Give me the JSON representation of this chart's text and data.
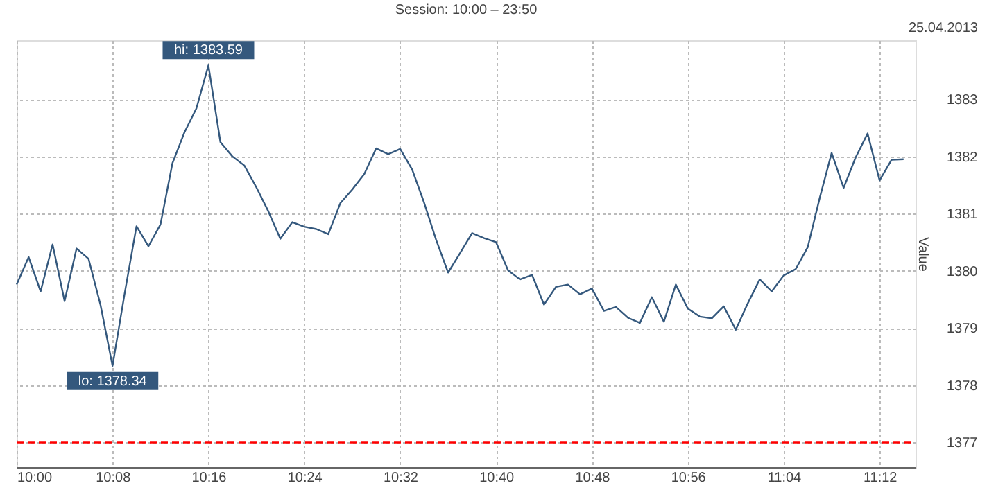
{
  "chart_data": {
    "type": "line",
    "title": "Session: 10:00 – 23:50",
    "ylabel": "Value",
    "x": [
      "2013-04-25T10:00",
      "2013-04-25T10:01",
      "2013-04-25T10:02",
      "2013-04-25T10:03",
      "2013-04-25T10:04",
      "2013-04-25T10:05",
      "2013-04-25T10:06",
      "2013-04-25T10:07",
      "2013-04-25T10:08",
      "2013-04-25T10:09",
      "2013-04-25T10:10",
      "2013-04-25T10:11",
      "2013-04-25T10:12",
      "2013-04-25T10:13",
      "2013-04-25T10:14",
      "2013-04-25T10:15",
      "2013-04-25T10:16",
      "2013-04-25T10:17",
      "2013-04-25T10:18",
      "2013-04-25T10:19",
      "2013-04-25T10:20",
      "2013-04-25T10:21",
      "2013-04-25T10:22",
      "2013-04-25T10:23",
      "2013-04-25T10:24",
      "2013-04-25T10:25",
      "2013-04-25T10:26",
      "2013-04-25T10:27",
      "2013-04-25T10:28",
      "2013-04-25T10:29",
      "2013-04-25T10:30",
      "2013-04-25T10:31",
      "2013-04-25T10:32",
      "2013-04-25T10:33",
      "2013-04-25T10:34",
      "2013-04-25T10:35",
      "2013-04-25T10:36",
      "2013-04-25T10:37",
      "2013-04-25T10:38",
      "2013-04-25T10:39",
      "2013-04-25T10:40",
      "2013-04-25T10:41",
      "2013-04-25T10:42",
      "2013-04-25T10:43",
      "2013-04-25T10:44",
      "2013-04-25T10:45",
      "2013-04-25T10:46",
      "2013-04-25T10:47",
      "2013-04-25T10:48",
      "2013-04-25T10:49",
      "2013-04-25T10:50",
      "2013-04-25T10:51",
      "2013-04-25T10:52",
      "2013-04-25T10:53",
      "2013-04-25T10:54",
      "2013-04-25T10:55",
      "2013-04-25T10:56",
      "2013-04-25T10:57",
      "2013-04-25T10:58",
      "2013-04-25T10:59",
      "2013-04-25T11:00",
      "2013-04-25T11:01",
      "2013-04-25T11:02",
      "2013-04-25T11:03",
      "2013-04-25T11:04",
      "2013-04-25T11:05",
      "2013-04-25T11:06",
      "2013-04-25T11:07",
      "2013-04-25T11:08",
      "2013-04-25T11:09",
      "2013-04-25T11:10",
      "2013-04-25T11:11",
      "2013-04-25T11:12",
      "2013-04-25T11:13",
      "2013-04-25T11:14"
    ],
    "series": [
      {
        "color": "#34587d",
        "values": [
          1379.76,
          1380.24,
          1379.64,
          1380.46,
          1379.47,
          1380.39,
          1380.21,
          1379.4,
          1378.34,
          1379.59,
          1380.78,
          1380.43,
          1380.81,
          1381.88,
          1382.42,
          1382.84,
          1383.59,
          1382.25,
          1382.0,
          1381.84,
          1381.46,
          1381.04,
          1380.56,
          1380.85,
          1380.77,
          1380.73,
          1380.64,
          1381.18,
          1381.42,
          1381.69,
          1382.14,
          1382.04,
          1382.13,
          1381.77,
          1381.19,
          1380.54,
          1379.97,
          1380.31,
          1380.66,
          1380.57,
          1380.5,
          1380.01,
          1379.85,
          1379.93,
          1379.41,
          1379.72,
          1379.76,
          1379.59,
          1379.69,
          1379.3,
          1379.37,
          1379.18,
          1379.09,
          1379.54,
          1379.11,
          1379.76,
          1379.34,
          1379.2,
          1379.17,
          1379.38,
          1378.97,
          1379.43,
          1379.85,
          1379.64,
          1379.92,
          1380.03,
          1380.41,
          1381.27,
          1382.06,
          1381.45,
          1381.98,
          1382.4,
          1381.58,
          1381.94,
          1381.95
        ]
      }
    ],
    "xlim": [
      "2013-04-25T10:00",
      "2013-04-25T11:15"
    ],
    "xticks": [
      {
        "value": "2013-04-25T10:00",
        "label": "10:00"
      },
      {
        "value": "2013-04-25T10:08",
        "label": "10:08"
      },
      {
        "value": "2013-04-25T10:16",
        "label": "10:16"
      },
      {
        "value": "2013-04-25T10:24",
        "label": "10:24"
      },
      {
        "value": "2013-04-25T10:32",
        "label": "10:32"
      },
      {
        "value": "2013-04-25T10:40",
        "label": "10:40"
      },
      {
        "value": "2013-04-25T10:48",
        "label": "10:48"
      },
      {
        "value": "2013-04-25T10:56",
        "label": "10:56"
      },
      {
        "value": "2013-04-25T11:04",
        "label": "11:04"
      },
      {
        "value": "2013-04-25T11:12",
        "label": "11:12"
      }
    ],
    "ylim": [
      1376.57,
      1384.03
    ],
    "yticks": [
      1377,
      1378,
      1379,
      1380,
      1381,
      1382,
      1383
    ],
    "grid": true,
    "ref_lines": [
      {
        "axis": "y",
        "value": 1377,
        "color": "#ff0000",
        "line_style": "dashed"
      }
    ],
    "annotations": [
      {
        "text": "hi: 1383.59",
        "x": "2013-04-25T10:16",
        "y": 1383.59
      },
      {
        "text": "lo: 1378.34",
        "x": "2013-04-25T10:08",
        "y": 1378.34
      },
      "25.04.2013"
    ]
  }
}
